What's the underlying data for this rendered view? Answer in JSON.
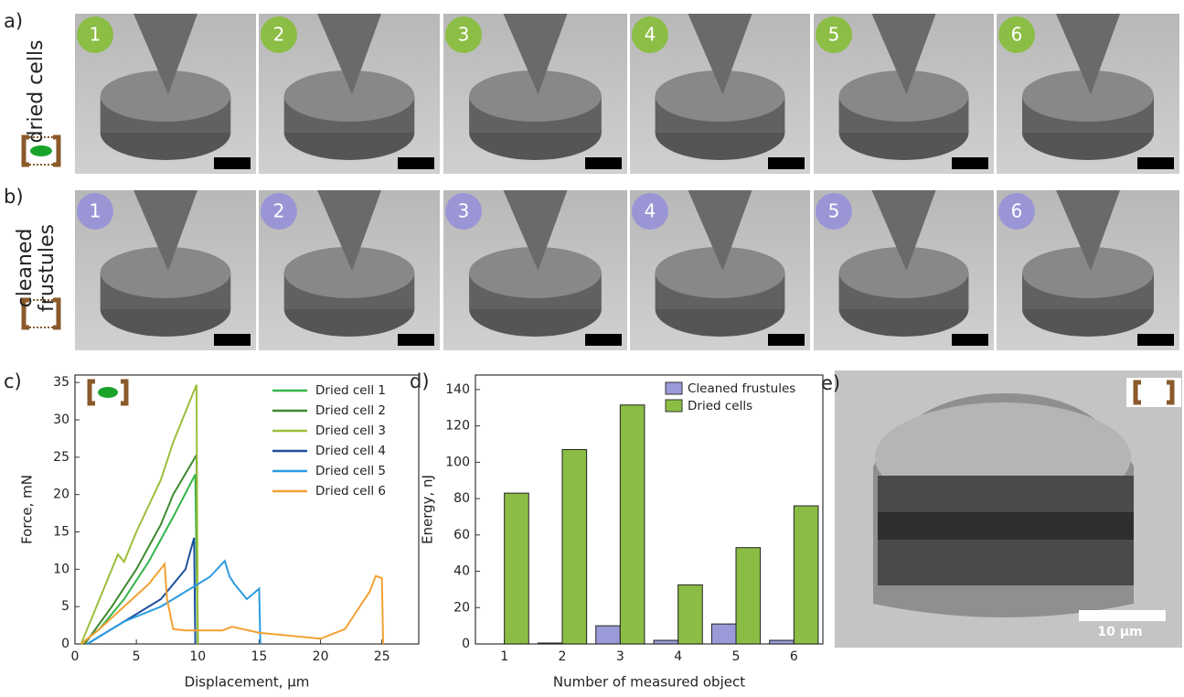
{
  "panels": {
    "a": {
      "label": "a)",
      "row_title": [
        "dried cells"
      ],
      "numbers": [
        "1",
        "2",
        "3",
        "4",
        "5",
        "6"
      ]
    },
    "b": {
      "label": "b)",
      "row_title": [
        "cleaned",
        "frustules"
      ],
      "numbers": [
        "1",
        "2",
        "3",
        "4",
        "5",
        "6"
      ]
    },
    "c": {
      "label": "c)"
    },
    "d": {
      "label": "d)"
    },
    "e": {
      "label": "e)",
      "scale_bar": "10 µm"
    }
  },
  "chart_data": [
    {
      "type": "line",
      "x_label": "Displacement, µm",
      "y_label": "Force, mN",
      "xlim": [
        0,
        28
      ],
      "ylim": [
        0,
        36
      ],
      "xticks": [
        0,
        5,
        10,
        15,
        20,
        25
      ],
      "yticks": [
        0,
        5,
        10,
        15,
        20,
        25,
        30,
        35
      ],
      "legend": "top-right",
      "series": [
        {
          "name": "Dried cell 1",
          "color": "#33b54a",
          "x": [
            0.5,
            2,
            4,
            6,
            8,
            9.8,
            10
          ],
          "values": [
            0,
            2,
            6,
            11,
            17,
            22.7,
            0
          ]
        },
        {
          "name": "Dried cell 2",
          "color": "#3d8a2e",
          "x": [
            0.8,
            3,
            5,
            7,
            8,
            9.9,
            10
          ],
          "values": [
            0,
            5,
            10,
            16,
            20,
            25.3,
            0
          ]
        },
        {
          "name": "Dried cell 3",
          "color": "#9cbf3b",
          "x": [
            0.5,
            2,
            3.5,
            4,
            5,
            7,
            8,
            9.9,
            10
          ],
          "values": [
            0,
            6,
            12,
            11,
            15,
            22,
            27,
            34.7,
            0
          ]
        },
        {
          "name": "Dried cell 4",
          "color": "#1f4f9e",
          "x": [
            1,
            3,
            5,
            7,
            9,
            9.7,
            9.8
          ],
          "values": [
            0,
            2,
            4,
            6,
            10,
            14.2,
            0
          ]
        },
        {
          "name": "Dried cell 5",
          "color": "#2b9be0",
          "x": [
            1,
            4,
            7,
            9,
            11,
            12.2,
            12.6,
            13,
            14,
            15,
            15.1
          ],
          "values": [
            0,
            3,
            5,
            7,
            9,
            11.1,
            9,
            8,
            6,
            7.4,
            0
          ]
        },
        {
          "name": "Dried cell 6",
          "color": "#f2a134",
          "x": [
            0.5,
            2,
            4,
            6,
            7.3,
            7.5,
            8,
            9,
            12,
            12.8,
            15,
            20,
            22,
            24,
            24.5,
            25,
            25.1
          ],
          "values": [
            0,
            2,
            5,
            8,
            10.7,
            6,
            2,
            1.8,
            1.8,
            2.3,
            1.5,
            0.7,
            2,
            7,
            9.1,
            8.8,
            0
          ]
        }
      ]
    },
    {
      "type": "bar",
      "x_label": "Number of measured object",
      "y_label": "Energy, nJ",
      "categories": [
        "1",
        "2",
        "3",
        "4",
        "5",
        "6"
      ],
      "ylim": [
        0,
        148
      ],
      "yticks": [
        0,
        20,
        40,
        60,
        80,
        100,
        120,
        140
      ],
      "legend": "top-right",
      "series": [
        {
          "name": "Cleaned frustules",
          "color": "#9a9ad8",
          "values": [
            0,
            0.5,
            10,
            2,
            11,
            2
          ]
        },
        {
          "name": "Dried cells",
          "color": "#8bbd45",
          "values": [
            83,
            107,
            131.5,
            32.5,
            53,
            76
          ]
        }
      ]
    }
  ]
}
